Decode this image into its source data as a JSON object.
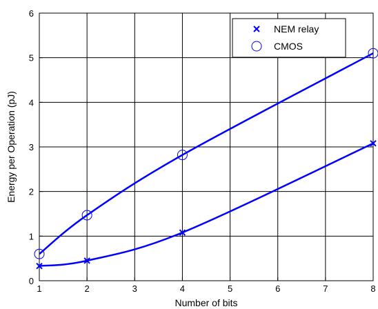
{
  "chart_data": {
    "type": "line",
    "xlabel": "Number of bits",
    "ylabel": "Energy per Operation (pJ)",
    "xlim": [
      1,
      8
    ],
    "ylim": [
      0,
      6
    ],
    "xticks": [
      1,
      2,
      3,
      4,
      5,
      6,
      7,
      8
    ],
    "yticks": [
      0,
      1,
      2,
      3,
      4,
      5,
      6
    ],
    "grid": true,
    "legend_position": "top-right",
    "series": [
      {
        "name": "NEM relay",
        "marker": "x",
        "color": "#0000ff",
        "x": [
          1,
          2,
          4,
          8
        ],
        "y": [
          0.33,
          0.45,
          1.08,
          3.08
        ]
      },
      {
        "name": "CMOS",
        "marker": "o",
        "color": "#0000ff",
        "x": [
          1,
          2,
          4,
          8
        ],
        "y": [
          0.6,
          1.47,
          2.82,
          5.1
        ]
      }
    ]
  }
}
